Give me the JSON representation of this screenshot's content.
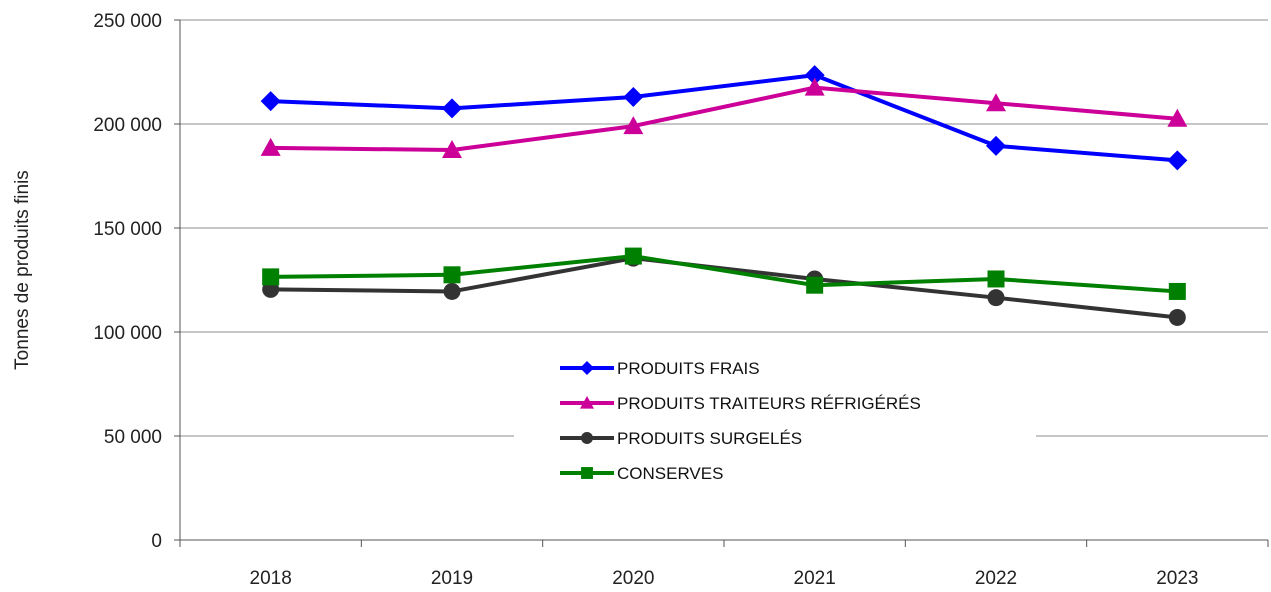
{
  "chart_data": {
    "type": "line",
    "title": "",
    "xlabel": "",
    "ylabel": "Tonnes de produits finis",
    "categories": [
      "2018",
      "2019",
      "2020",
      "2021",
      "2022",
      "2023"
    ],
    "ylim": [
      0,
      250000
    ],
    "y_ticks": [
      0,
      50000,
      100000,
      150000,
      200000,
      250000
    ],
    "y_tick_labels": [
      "0",
      "50 000",
      "100 000",
      "150 000",
      "200 000",
      "250 000"
    ],
    "grid": "horizontal",
    "legend_position": "center",
    "series": [
      {
        "name": "PRODUITS FRAIS",
        "color": "#0000FF",
        "marker": "diamond",
        "values": [
          211000,
          207500,
          213000,
          223500,
          189500,
          182500
        ]
      },
      {
        "name": "PRODUITS TRAITEURS RÉFRIGÉRÉS",
        "color": "#CC0099",
        "marker": "triangle",
        "values": [
          188500,
          187500,
          199000,
          217500,
          210000,
          202500
        ]
      },
      {
        "name": "PRODUITS SURGELÉS",
        "color": "#333333",
        "marker": "circle",
        "values": [
          120500,
          119500,
          135500,
          125500,
          116500,
          107000
        ]
      },
      {
        "name": "CONSERVES",
        "color": "#008000",
        "marker": "square",
        "values": [
          126500,
          127500,
          136500,
          122500,
          125500,
          119500
        ]
      }
    ]
  }
}
